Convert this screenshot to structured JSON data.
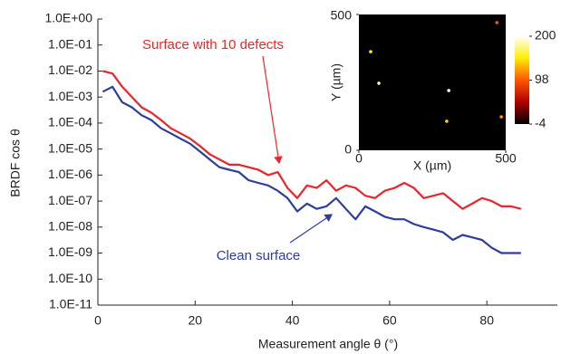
{
  "chart_data": [
    {
      "type": "line",
      "y_label": "BRDF cos θ",
      "x_label": "Measurement angle θ (°)",
      "x": [
        1,
        3,
        5,
        7,
        9,
        11,
        13,
        15,
        17,
        19,
        21,
        23,
        25,
        27,
        29,
        31,
        33,
        35,
        37,
        39,
        41,
        43,
        45,
        47,
        49,
        51,
        53,
        55,
        57,
        59,
        61,
        63,
        65,
        67,
        69,
        71,
        73,
        75,
        77,
        79,
        81,
        83,
        85,
        87
      ],
      "series": [
        {
          "name": "Surface with 10 defects",
          "color": "#e8262b",
          "values": [
            0.01,
            0.008,
            0.0025,
            0.001,
            0.0004,
            0.00025,
            0.00013,
            6.3e-05,
            4e-05,
            2.5e-05,
            1.3e-05,
            6.3e-06,
            4e-06,
            2.5e-06,
            2.5e-06,
            2e-06,
            1.6e-06,
            1e-06,
            1.3e-06,
            3.2e-07,
            1.3e-07,
            4e-07,
            3.2e-07,
            6.3e-07,
            2.5e-07,
            4e-07,
            3.2e-07,
            1.6e-07,
            1.3e-07,
            2.5e-07,
            3.2e-07,
            5e-07,
            3.2e-07,
            1.3e-07,
            1.6e-07,
            2e-07,
            1e-07,
            5e-08,
            8e-08,
            1.3e-07,
            1e-07,
            6.3e-08,
            6.3e-08,
            5e-08
          ]
        },
        {
          "name": "Clean surface",
          "color": "#2e3d9c",
          "values": [
            0.0016,
            0.0025,
            0.00063,
            0.0004,
            0.0002,
            0.00013,
            6.3e-05,
            4e-05,
            2.5e-05,
            1.6e-05,
            8e-06,
            4e-06,
            2e-06,
            1.6e-06,
            1.3e-06,
            6.3e-07,
            5e-07,
            4e-07,
            2.5e-07,
            1.3e-07,
            4e-08,
            8e-08,
            5e-08,
            6.3e-08,
            1.3e-07,
            5e-08,
            2e-08,
            6.3e-08,
            4e-08,
            2.5e-08,
            2e-08,
            2e-08,
            1.3e-08,
            1e-08,
            8e-09,
            6.3e-09,
            3.2e-09,
            5e-09,
            4e-09,
            3.2e-09,
            1.6e-09,
            1e-09,
            1e-09,
            1e-09
          ]
        }
      ],
      "xlim": [
        0,
        94.5
      ],
      "xticks": [
        0,
        20,
        40,
        60,
        80
      ],
      "log_y": true,
      "ylim": [
        1e-11,
        1
      ],
      "yticks": [
        {
          "value": 1,
          "label": "1.0E+00"
        },
        {
          "value": 0.1,
          "label": "1.0E-01"
        },
        {
          "value": 0.01,
          "label": "1.0E-02"
        },
        {
          "value": 0.001,
          "label": "1.0E-03"
        },
        {
          "value": 0.0001,
          "label": "1.0E-04"
        },
        {
          "value": 1e-05,
          "label": "1.0E-05"
        },
        {
          "value": 1e-06,
          "label": "1.0E-06"
        },
        {
          "value": 1e-07,
          "label": "1.0E-07"
        },
        {
          "value": 1e-08,
          "label": "1.0E-08"
        },
        {
          "value": 1e-09,
          "label": "1.0E-09"
        },
        {
          "value": 1e-10,
          "label": "1.0E-10"
        },
        {
          "value": 1e-11,
          "label": "1.0E-11"
        }
      ]
    },
    {
      "type": "heatmap",
      "x_label": "X (µm)",
      "y_label": "Y (µm)",
      "xlim": [
        0,
        500
      ],
      "ylim": [
        0,
        500
      ],
      "xticks": [
        0,
        500
      ],
      "yticks": [
        0,
        500
      ],
      "points": {
        "x": [
          40,
          68,
          306,
          485,
          299,
          470
        ],
        "y": [
          363,
          247,
          220,
          123,
          107,
          470
        ],
        "values": [
          150,
          180,
          200,
          120,
          140,
          100
        ]
      },
      "clim": [
        -4,
        200
      ],
      "cticks": [
        -4,
        98,
        200
      ],
      "colormap": [
        "#000000",
        "#b00000",
        "#ff5500",
        "#ffee00",
        "#ffffff"
      ]
    }
  ]
}
